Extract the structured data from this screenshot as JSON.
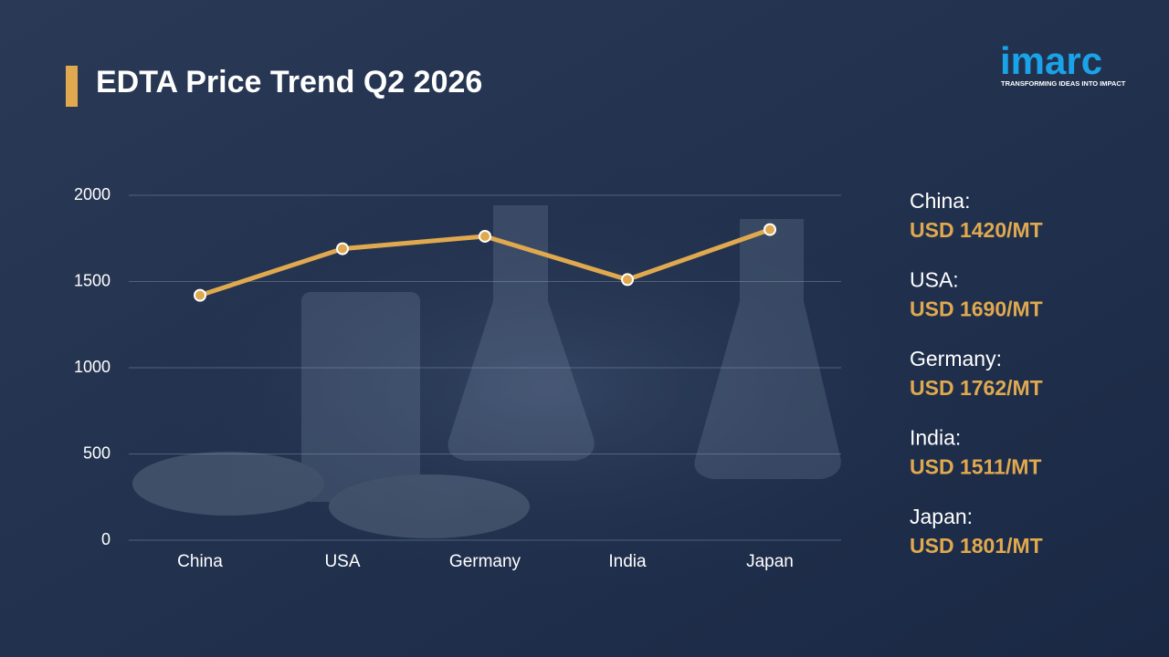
{
  "chart_data": {
    "type": "line",
    "title": "EDTA Price Trend Q2 2026",
    "categories": [
      "China",
      "USA",
      "Germany",
      "India",
      "Japan"
    ],
    "values": [
      1420,
      1690,
      1762,
      1511,
      1801
    ],
    "value_labels": [
      "USD 1420/MT",
      "USD 1690/MT",
      "USD 1762/MT",
      "USD 1511/MT",
      "USD 1801/MT"
    ],
    "panel_labels": [
      "China:",
      "USA:",
      "Germany:",
      "India:",
      "Japan:"
    ],
    "color": "#e0a94f",
    "ylim": [
      0,
      2000
    ],
    "yticks": [
      0,
      500,
      1000,
      1500,
      2000
    ],
    "grid": true
  },
  "logo": {
    "name": "imarc",
    "tagline": "TRANSFORMING IDEAS INTO IMPACT"
  }
}
